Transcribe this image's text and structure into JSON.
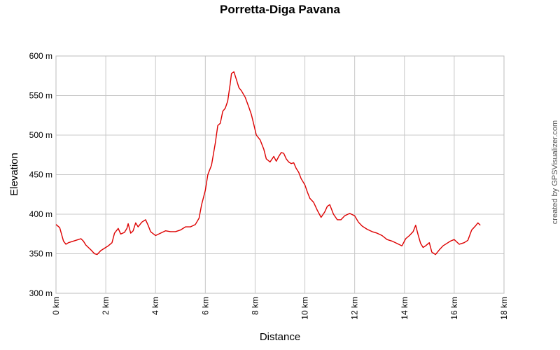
{
  "chart_data": {
    "type": "line",
    "title": "Porretta-Diga Pavana",
    "xlabel": "Distance",
    "ylabel": "Elevation",
    "x_unit": "km",
    "y_unit": "m",
    "xlim": [
      0,
      18
    ],
    "ylim": [
      300,
      600
    ],
    "x_ticks": [
      0,
      2,
      4,
      6,
      8,
      10,
      12,
      14,
      16,
      18
    ],
    "y_ticks": [
      300,
      350,
      400,
      450,
      500,
      550,
      600
    ],
    "x_tick_labels": [
      "0 km",
      "2 km",
      "4 km",
      "6 km",
      "8 km",
      "10 km",
      "12 km",
      "14 km",
      "16 km",
      "18 km"
    ],
    "y_tick_labels": [
      "300 m",
      "350 m",
      "400 m",
      "450 m",
      "500 m",
      "550 m",
      "600 m"
    ],
    "grid": true,
    "legend": "none",
    "line_color": "#dd0000",
    "grid_color": "#c8c8c8",
    "series": [
      {
        "x": [
          0,
          0.15,
          0.3,
          0.4,
          0.5,
          0.7,
          0.9,
          1.0,
          1.1,
          1.2,
          1.4,
          1.55,
          1.65,
          1.8,
          2.0,
          2.1,
          2.25,
          2.35,
          2.5,
          2.6,
          2.75,
          2.85,
          2.9,
          3.0,
          3.1,
          3.2,
          3.3,
          3.45,
          3.6,
          3.7,
          3.8,
          4.0,
          4.2,
          4.4,
          4.6,
          4.8,
          5.0,
          5.2,
          5.4,
          5.6,
          5.75,
          5.85,
          6.0,
          6.1,
          6.25,
          6.4,
          6.5,
          6.6,
          6.7,
          6.8,
          6.9,
          7.0,
          7.05,
          7.15,
          7.25,
          7.35,
          7.45,
          7.6,
          7.75,
          7.85,
          7.95,
          8.05,
          8.2,
          8.35,
          8.45,
          8.6,
          8.75,
          8.85,
          8.95,
          9.05,
          9.15,
          9.25,
          9.35,
          9.45,
          9.55,
          9.65,
          9.75,
          9.85,
          10.0,
          10.1,
          10.2,
          10.35,
          10.5,
          10.65,
          10.8,
          10.9,
          11.0,
          11.15,
          11.3,
          11.45,
          11.6,
          11.8,
          12.0,
          12.15,
          12.3,
          12.5,
          12.7,
          12.9,
          13.1,
          13.3,
          13.5,
          13.7,
          13.9,
          14.05,
          14.2,
          14.35,
          14.45,
          14.55,
          14.65,
          14.75,
          14.85,
          15.0,
          15.1,
          15.25,
          15.4,
          15.55,
          15.7,
          15.85,
          16.0,
          16.2,
          16.4,
          16.55,
          16.7,
          16.85,
          16.95,
          17.05
        ],
        "y": [
          387,
          383,
          366,
          362,
          364,
          366,
          368,
          369,
          366,
          361,
          355,
          350,
          349,
          354,
          358,
          360,
          364,
          376,
          382,
          375,
          377,
          382,
          388,
          376,
          379,
          389,
          384,
          390,
          393,
          386,
          378,
          373,
          376,
          379,
          378,
          378,
          380,
          384,
          384,
          387,
          395,
          412,
          430,
          450,
          462,
          490,
          512,
          515,
          530,
          534,
          543,
          565,
          578,
          580,
          570,
          560,
          556,
          548,
          535,
          526,
          513,
          500,
          494,
          482,
          470,
          466,
          473,
          467,
          473,
          478,
          477,
          470,
          466,
          464,
          465,
          458,
          453,
          445,
          437,
          428,
          420,
          415,
          405,
          396,
          403,
          410,
          412,
          400,
          393,
          393,
          398,
          401,
          398,
          390,
          385,
          381,
          378,
          376,
          373,
          368,
          366,
          363,
          360,
          369,
          373,
          378,
          386,
          374,
          363,
          358,
          360,
          364,
          352,
          349,
          355,
          360,
          363,
          366,
          368,
          362,
          364,
          367,
          380,
          385,
          389,
          386
        ]
      }
    ]
  },
  "credit": "created by GPSVisualizer.com"
}
